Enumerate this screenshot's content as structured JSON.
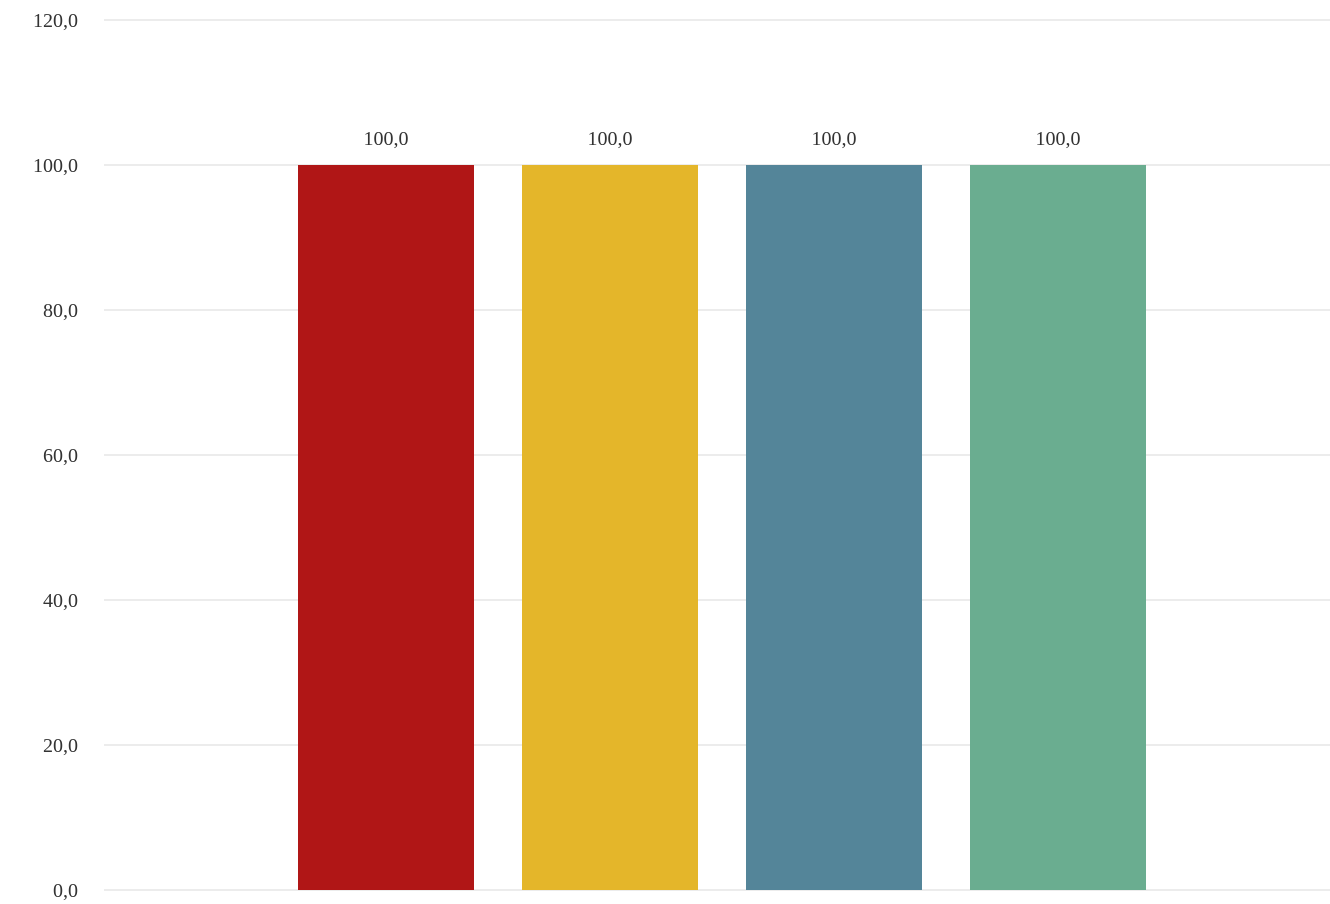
{
  "chart_data": {
    "type": "bar",
    "title": "",
    "xlabel": "",
    "ylabel": "",
    "categories": [
      "",
      "",
      "",
      ""
    ],
    "values": [
      100.0,
      100.0,
      100.0,
      100.0
    ],
    "value_labels": [
      "100,0",
      "100,0",
      "100,0",
      "100,0"
    ],
    "colors": [
      "#b01616",
      "#e4b62a",
      "#548599",
      "#6aad90"
    ],
    "ylim": [
      0,
      120
    ],
    "yticks": [
      0,
      20,
      40,
      60,
      80,
      100,
      120
    ],
    "ytick_labels": [
      "0,0",
      "20,0",
      "40,0",
      "60,0",
      "80,0",
      "100,0",
      "120,0"
    ],
    "grid": true,
    "legend": "none"
  }
}
